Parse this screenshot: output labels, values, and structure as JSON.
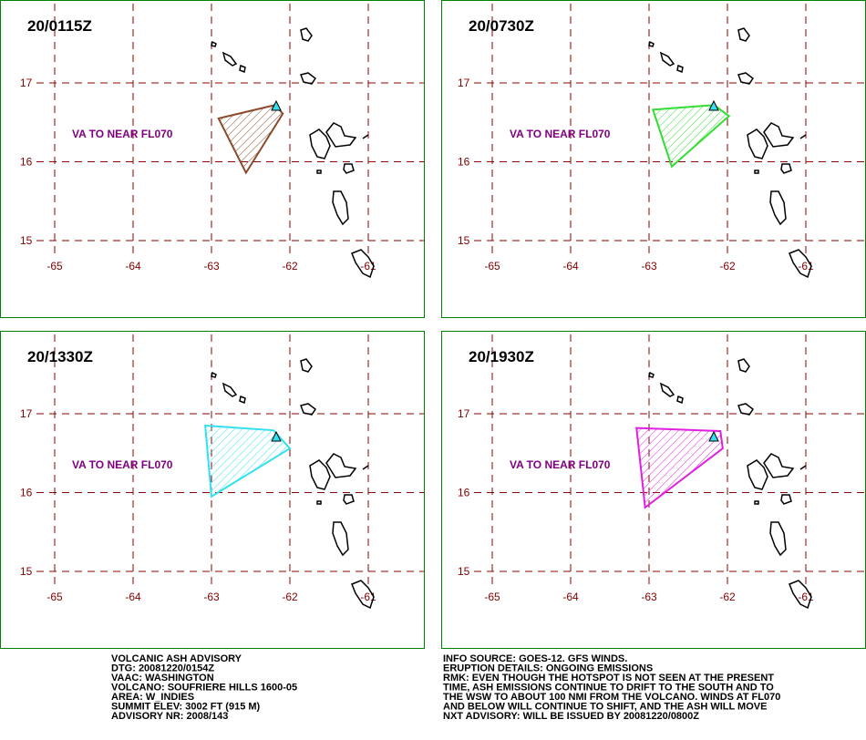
{
  "map": {
    "lon_ticks": [
      -65,
      -64,
      -63,
      -62,
      -61
    ],
    "lat_ticks": [
      15,
      16,
      17
    ],
    "panels": [
      {
        "time": "20/0115Z",
        "label": "VA TO NEAR FL070",
        "color": "#8b4a2b",
        "polygon": [
          [
            -62.91,
            16.55
          ],
          [
            -62.19,
            16.72
          ],
          [
            -62.09,
            16.61
          ],
          [
            -62.56,
            15.86
          ]
        ]
      },
      {
        "time": "20/0730Z",
        "label": "VA TO NEAR FL070",
        "color": "#33dd33",
        "polygon": [
          [
            -62.95,
            16.66
          ],
          [
            -62.17,
            16.72
          ],
          [
            -61.98,
            16.58
          ],
          [
            -62.71,
            15.94
          ]
        ]
      },
      {
        "time": "20/1330Z",
        "label": "VA TO NEAR FL070",
        "color": "#33e0f0",
        "polygon": [
          [
            -63.08,
            16.85
          ],
          [
            -62.21,
            16.79
          ],
          [
            -62.0,
            16.56
          ],
          [
            -63.0,
            15.95
          ]
        ]
      },
      {
        "time": "20/1930Z",
        "label": "VA TO NEAR FL070",
        "color": "#e020e0",
        "polygon": [
          [
            -63.16,
            16.82
          ],
          [
            -62.09,
            16.78
          ],
          [
            -62.06,
            16.56
          ],
          [
            -63.05,
            15.81
          ]
        ]
      }
    ]
  },
  "advisory": {
    "left": [
      "VOLCANIC ASH ADVISORY",
      "DTG: 20081220/0154Z",
      "VAAC: WASHINGTON",
      "VOLCANO: SOUFRIERE HILLS 1600-05",
      "AREA: W_INDIES",
      "SUMMIT ELEV: 3002 FT (915 M)",
      "ADVISORY NR: 2008/143"
    ],
    "right": [
      "INFO SOURCE: GOES-12. GFS WINDS.",
      "ERUPTION DETAILS: ONGOING EMISSIONS",
      "RMK: EVEN THOUGH THE HOTSPOT IS NOT SEEN AT THE PRESENT",
      "TIME, ASH EMISSIONS CONTINUE TO DRIFT TO THE SOUTH AND TO",
      "THE WSW TO ABOUT 100 NMI FROM THE VOLCANO. WINDS AT FL070",
      "AND BELOW WILL CONTINUE TO SHIFT, AND THE ASH WILL MOVE",
      "NXT ADVISORY: WILL BE ISSUED BY 20081220/0800Z"
    ]
  }
}
